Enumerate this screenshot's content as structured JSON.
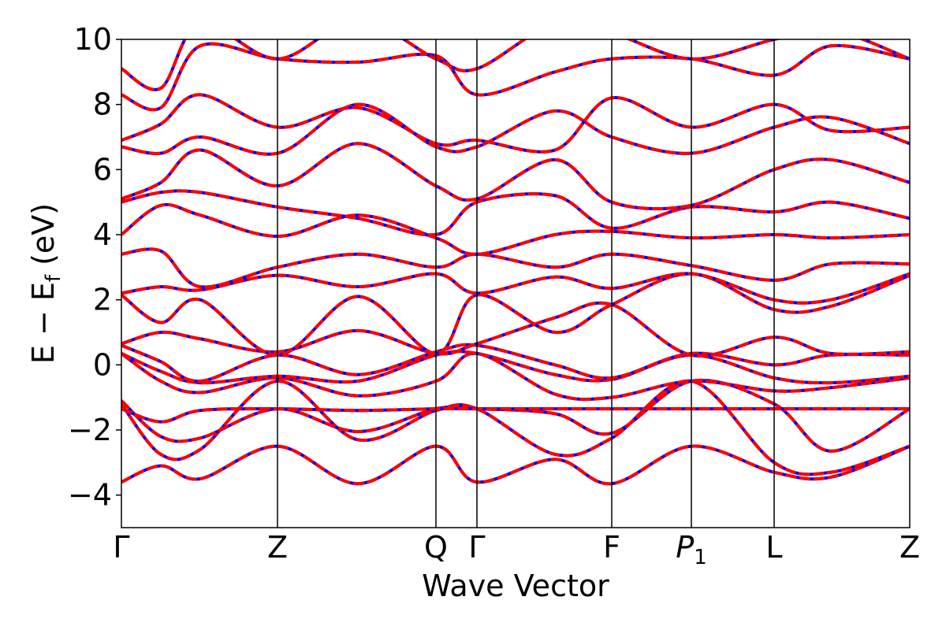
{
  "chart_data": {
    "type": "line",
    "title": "",
    "xlabel": "Wave Vector",
    "ylabel": "E − E_f (eV)",
    "ylabel_parts": {
      "main": "E − E",
      "sub": "f",
      "unit": "(eV)"
    },
    "ylim": [
      -5,
      10
    ],
    "yticks": [
      -4,
      -2,
      0,
      2,
      4,
      6,
      8,
      10
    ],
    "ytick_labels": [
      "−4",
      "−2",
      "0",
      "2",
      "4",
      "6",
      "8",
      "10"
    ],
    "x_range": [
      0,
      1
    ],
    "kpoints": [
      {
        "label": "Γ",
        "x": 0.0
      },
      {
        "label": "Z",
        "x": 0.198
      },
      {
        "label": "Q",
        "x": 0.399
      },
      {
        "label": "Γ",
        "x": 0.451
      },
      {
        "label": "F",
        "x": 0.622
      },
      {
        "label": "P",
        "sub": "1",
        "italic": true,
        "x": 0.723
      },
      {
        "label": "L",
        "x": 0.828
      },
      {
        "label": "Z",
        "x": 1.0
      }
    ],
    "grid": false,
    "legend": "none",
    "series": [
      {
        "style": "solid",
        "color": "#0000ff"
      },
      {
        "style": "dashed",
        "color": "#ff0000"
      }
    ],
    "bands": [
      {
        "x": [
          0,
          0.05,
          0.1,
          0.198,
          0.3,
          0.399,
          0.451,
          0.55,
          0.622,
          0.723,
          0.828,
          0.9,
          1
        ],
        "y": [
          -3.6,
          -3.1,
          -3.5,
          -2.5,
          -3.65,
          -2.5,
          -3.6,
          -2.9,
          -3.65,
          -2.5,
          -3.3,
          -3.45,
          -2.5
        ]
      },
      {
        "x": [
          0,
          0.05,
          0.1,
          0.198,
          0.3,
          0.399,
          0.451,
          0.55,
          0.622,
          0.723,
          0.828,
          0.9,
          1
        ],
        "y": [
          -1.2,
          -2.75,
          -2.6,
          -0.5,
          -2.3,
          -1.4,
          -1.35,
          -2.75,
          -2.25,
          -0.5,
          -3.0,
          -3.3,
          -2.5
        ]
      },
      {
        "x": [
          0,
          0.05,
          0.1,
          0.198,
          0.3,
          0.399,
          0.451,
          0.55,
          0.622,
          0.723,
          0.828,
          0.9,
          1
        ],
        "y": [
          -1.1,
          -2.2,
          -2.25,
          -1.35,
          -2.05,
          -1.35,
          -1.35,
          -1.5,
          -2.1,
          -0.5,
          -1.2,
          -2.65,
          -1.35
        ]
      },
      {
        "x": [
          0,
          0.05,
          0.1,
          0.198,
          0.3,
          0.399,
          0.451,
          0.55,
          0.622,
          0.723,
          0.828,
          0.9,
          1
        ],
        "y": [
          -1.35,
          -1.75,
          -1.4,
          -1.35,
          -1.4,
          -1.35,
          -1.35,
          -1.35,
          -1.35,
          -1.35,
          -1.35,
          -1.35,
          -1.35
        ]
      },
      {
        "x": [
          0,
          0.05,
          0.1,
          0.198,
          0.3,
          0.399,
          0.451,
          0.55,
          0.622,
          0.723,
          0.828,
          0.9,
          1
        ],
        "y": [
          0.35,
          -0.5,
          -0.85,
          -0.4,
          -0.95,
          -0.5,
          0.35,
          -0.9,
          -1.0,
          -0.5,
          -0.8,
          -0.7,
          -0.4
        ]
      },
      {
        "x": [
          0,
          0.05,
          0.1,
          0.198,
          0.3,
          0.399,
          0.451,
          0.55,
          0.622,
          0.723,
          0.828,
          0.9,
          1
        ],
        "y": [
          0.35,
          -0.2,
          -0.55,
          -0.35,
          -0.5,
          0.3,
          0.35,
          -0.3,
          -0.45,
          0.3,
          -0.4,
          -0.55,
          -0.35
        ]
      },
      {
        "x": [
          0,
          0.05,
          0.1,
          0.198,
          0.3,
          0.399,
          0.451,
          0.55,
          0.622,
          0.723,
          0.828,
          0.9,
          1
        ],
        "y": [
          0.6,
          0.1,
          -0.5,
          0.3,
          -0.3,
          0.4,
          0.6,
          0.0,
          -0.4,
          0.35,
          0.0,
          0.3,
          0.3
        ]
      },
      {
        "x": [
          0,
          0.05,
          0.1,
          0.198,
          0.3,
          0.399,
          0.451,
          0.55,
          0.622,
          0.723,
          0.828,
          0.9,
          1
        ],
        "y": [
          0.65,
          1.0,
          0.8,
          0.4,
          1.05,
          0.35,
          0.65,
          1.45,
          1.85,
          0.3,
          0.85,
          0.35,
          0.4
        ]
      },
      {
        "x": [
          0,
          0.05,
          0.1,
          0.198,
          0.3,
          0.399,
          0.451,
          0.55,
          0.622,
          0.723,
          0.828,
          0.9,
          1
        ],
        "y": [
          2.15,
          1.3,
          2.0,
          0.3,
          2.1,
          0.35,
          2.15,
          1.0,
          1.85,
          2.8,
          1.7,
          1.8,
          2.75
        ]
      },
      {
        "x": [
          0,
          0.05,
          0.1,
          0.198,
          0.3,
          0.399,
          0.451,
          0.55,
          0.622,
          0.723,
          0.828,
          0.9,
          1
        ],
        "y": [
          2.2,
          2.4,
          2.3,
          2.75,
          2.4,
          2.8,
          2.2,
          2.7,
          2.35,
          2.8,
          2.0,
          2.0,
          2.8
        ]
      },
      {
        "x": [
          0,
          0.05,
          0.1,
          0.198,
          0.3,
          0.399,
          0.451,
          0.55,
          0.622,
          0.723,
          0.828,
          0.9,
          1
        ],
        "y": [
          3.4,
          3.5,
          2.4,
          3.0,
          3.4,
          3.0,
          3.4,
          3.0,
          3.4,
          3.05,
          2.6,
          3.1,
          3.1
        ]
      },
      {
        "x": [
          0,
          0.05,
          0.1,
          0.198,
          0.3,
          0.399,
          0.451,
          0.55,
          0.622,
          0.723,
          0.828,
          0.9,
          1
        ],
        "y": [
          4.0,
          4.9,
          4.6,
          3.95,
          4.6,
          3.9,
          3.4,
          4.0,
          4.1,
          3.9,
          4.0,
          3.9,
          4.0
        ]
      },
      {
        "x": [
          0,
          0.05,
          0.1,
          0.198,
          0.3,
          0.399,
          0.451,
          0.55,
          0.622,
          0.723,
          0.828,
          0.9,
          1
        ],
        "y": [
          5.0,
          5.3,
          5.3,
          4.85,
          4.5,
          4.0,
          5.0,
          5.2,
          4.2,
          4.85,
          4.7,
          5.0,
          4.5
        ]
      },
      {
        "x": [
          0,
          0.05,
          0.1,
          0.198,
          0.3,
          0.399,
          0.451,
          0.55,
          0.622,
          0.723,
          0.828,
          0.9,
          1
        ],
        "y": [
          5.1,
          5.6,
          6.6,
          5.5,
          6.8,
          5.5,
          5.1,
          6.3,
          5.0,
          4.9,
          6.0,
          6.3,
          5.6
        ]
      },
      {
        "x": [
          0,
          0.05,
          0.1,
          0.198,
          0.3,
          0.399,
          0.451,
          0.55,
          0.622,
          0.723,
          0.828,
          0.9,
          1
        ],
        "y": [
          6.7,
          6.5,
          7.0,
          6.5,
          8.0,
          6.7,
          6.7,
          7.8,
          7.0,
          6.5,
          7.3,
          7.6,
          6.8
        ]
      },
      {
        "x": [
          0,
          0.05,
          0.1,
          0.198,
          0.3,
          0.399,
          0.451,
          0.55,
          0.622,
          0.723,
          0.828,
          0.9,
          1
        ],
        "y": [
          6.9,
          7.4,
          8.3,
          7.3,
          7.9,
          6.8,
          6.9,
          6.6,
          8.2,
          7.3,
          8.0,
          7.2,
          7.3
        ]
      },
      {
        "x": [
          0,
          0.05,
          0.1,
          0.198,
          0.3,
          0.399,
          0.451,
          0.55,
          0.622,
          0.723,
          0.828,
          0.9,
          1
        ],
        "y": [
          8.3,
          7.9,
          9.8,
          9.4,
          9.3,
          9.5,
          8.3,
          9.0,
          9.4,
          9.4,
          8.9,
          9.8,
          9.4
        ]
      },
      {
        "x": [
          0,
          0.05,
          0.1,
          0.198,
          0.3,
          0.399,
          0.451,
          0.55,
          0.622,
          0.723,
          0.828,
          0.9,
          1
        ],
        "y": [
          9.1,
          8.5,
          10.5,
          9.4,
          10.6,
          9.4,
          9.1,
          10.5,
          10.2,
          9.4,
          10.0,
          10.3,
          9.4
        ]
      }
    ]
  }
}
